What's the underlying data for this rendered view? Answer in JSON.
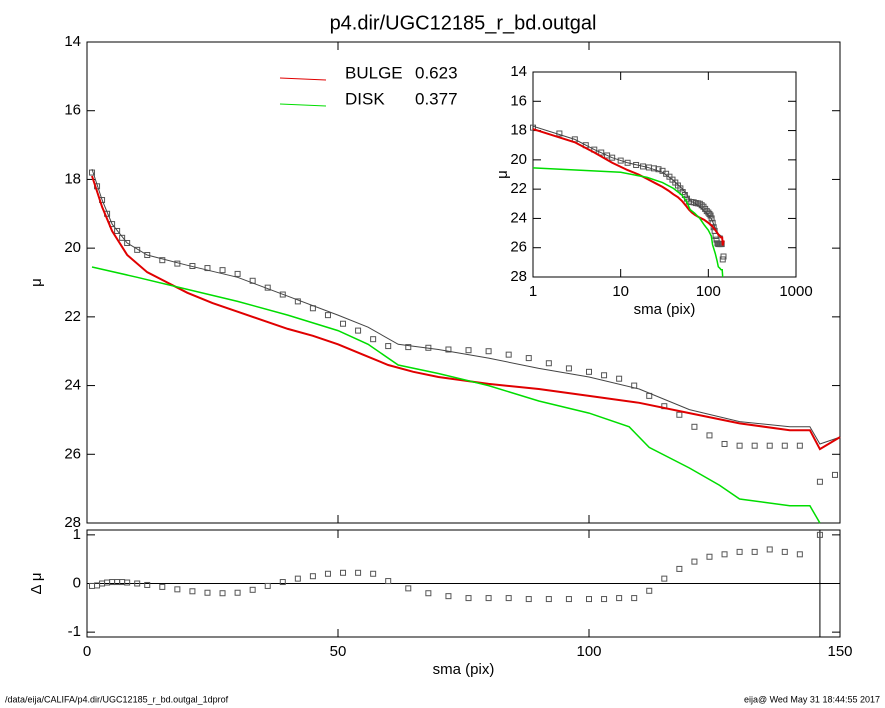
{
  "title": "p4.dir/UGC12185_r_bd.outgal",
  "footer_left": "/data/eija/CALIFA/p4.dir/UGC12185_r_bd.outgal_1dprof",
  "footer_right": "eija@  Wed May 31 18:44:55 2017",
  "chart_data": [
    {
      "type": "line",
      "ylabel": "μ",
      "xlim": [
        0,
        150
      ],
      "ylim": [
        28,
        14
      ],
      "xticks": [
        0,
        50,
        100,
        150
      ],
      "yticks": [
        14,
        16,
        18,
        20,
        22,
        24,
        26,
        28
      ],
      "series": [
        {
          "style": "points",
          "color": "#555555",
          "x": [
            1,
            2,
            3,
            4,
            5,
            6,
            7,
            8,
            10,
            12,
            15,
            18,
            21,
            24,
            27,
            30,
            33,
            36,
            39,
            42,
            45,
            48,
            51,
            54,
            57,
            60,
            64,
            68,
            72,
            76,
            80,
            84,
            88,
            92,
            96,
            100,
            103,
            106,
            109,
            112,
            115,
            118,
            121,
            124,
            127,
            130,
            133,
            136,
            139,
            142,
            146,
            149
          ],
          "values": [
            17.8,
            18.2,
            18.6,
            19.0,
            19.3,
            19.5,
            19.7,
            19.85,
            20.05,
            20.2,
            20.35,
            20.45,
            20.52,
            20.58,
            20.64,
            20.75,
            20.95,
            21.15,
            21.35,
            21.55,
            21.75,
            21.95,
            22.2,
            22.4,
            22.65,
            22.85,
            22.88,
            22.9,
            22.95,
            22.97,
            23.0,
            23.1,
            23.2,
            23.35,
            23.5,
            23.6,
            23.7,
            23.8,
            24.0,
            24.3,
            24.6,
            24.85,
            25.2,
            25.45,
            25.7,
            25.75,
            25.75,
            25.75,
            25.75,
            25.75,
            26.8,
            26.6
          ]
        },
        {
          "style": "line",
          "color": "#444444",
          "width": 1,
          "x": [
            1,
            3,
            5,
            8,
            12,
            20,
            30,
            40,
            50,
            56,
            62,
            70,
            80,
            90,
            100,
            110,
            120,
            130,
            140,
            144,
            146,
            150
          ],
          "values": [
            17.7,
            18.6,
            19.3,
            19.85,
            20.2,
            20.5,
            20.85,
            21.4,
            21.95,
            22.3,
            22.8,
            22.95,
            23.2,
            23.5,
            23.75,
            24.1,
            24.7,
            25.05,
            25.2,
            25.2,
            25.7,
            25.5
          ]
        },
        {
          "style": "line",
          "name": "BULGE",
          "fraction": 0.623,
          "color": "#e00000",
          "width": 2,
          "x": [
            1,
            3,
            5,
            8,
            12,
            16,
            20,
            25,
            30,
            35,
            40,
            45,
            50,
            55,
            60,
            65,
            70,
            80,
            90,
            100,
            110,
            120,
            130,
            140,
            144,
            146,
            150
          ],
          "values": [
            17.9,
            18.8,
            19.5,
            20.2,
            20.7,
            21.0,
            21.3,
            21.6,
            21.85,
            22.1,
            22.35,
            22.55,
            22.8,
            23.1,
            23.4,
            23.6,
            23.75,
            23.95,
            24.1,
            24.3,
            24.5,
            24.8,
            25.1,
            25.3,
            25.3,
            25.85,
            25.5
          ]
        },
        {
          "style": "line",
          "name": "DISK",
          "fraction": 0.377,
          "color": "#00dd00",
          "width": 1.5,
          "x": [
            1,
            10,
            20,
            30,
            40,
            50,
            56,
            62,
            70,
            80,
            90,
            100,
            108,
            112,
            120,
            126,
            130,
            135,
            140,
            144,
            146
          ],
          "values": [
            20.55,
            20.85,
            21.2,
            21.55,
            21.95,
            22.4,
            22.8,
            23.4,
            23.65,
            24.0,
            24.45,
            24.8,
            25.2,
            25.8,
            26.4,
            26.9,
            27.3,
            27.4,
            27.5,
            27.5,
            28.0
          ]
        }
      ]
    },
    {
      "type": "line",
      "xscale": "log",
      "ylabel": "μ",
      "xlabel": "sma (pix)",
      "xlim": [
        1,
        1000
      ],
      "ylim": [
        28,
        14
      ],
      "xticks": [
        1,
        10,
        100,
        1000
      ],
      "yticks": [
        14,
        16,
        18,
        20,
        22,
        24,
        26,
        28
      ]
    },
    {
      "type": "scatter",
      "ylabel": "Δ μ",
      "xlabel": "sma (pix)",
      "xlim": [
        0,
        150
      ],
      "ylim": [
        -1.1,
        1.1
      ],
      "xticks": [
        0,
        50,
        100,
        150
      ],
      "yticks": [
        -1,
        0,
        1
      ],
      "hline": 0,
      "vline": 146,
      "color": "#555555",
      "x": [
        1,
        2,
        3,
        4,
        5,
        6,
        7,
        8,
        10,
        12,
        15,
        18,
        21,
        24,
        27,
        30,
        33,
        36,
        39,
        42,
        45,
        48,
        51,
        54,
        57,
        60,
        64,
        68,
        72,
        76,
        80,
        84,
        88,
        92,
        96,
        100,
        103,
        106,
        109,
        112,
        115,
        118,
        121,
        124,
        127,
        130,
        133,
        136,
        139,
        142,
        146
      ],
      "values": [
        -0.05,
        -0.04,
        0,
        0.02,
        0.03,
        0.03,
        0.03,
        0.02,
        0,
        -0.03,
        -0.07,
        -0.12,
        -0.16,
        -0.19,
        -0.2,
        -0.19,
        -0.13,
        -0.05,
        0.03,
        0.1,
        0.15,
        0.2,
        0.22,
        0.22,
        0.2,
        0.05,
        -0.1,
        -0.2,
        -0.26,
        -0.3,
        -0.3,
        -0.3,
        -0.32,
        -0.32,
        -0.32,
        -0.32,
        -0.32,
        -0.3,
        -0.3,
        -0.15,
        0.1,
        0.3,
        0.45,
        0.55,
        0.6,
        0.65,
        0.65,
        0.7,
        0.65,
        0.6,
        1.0
      ]
    }
  ]
}
